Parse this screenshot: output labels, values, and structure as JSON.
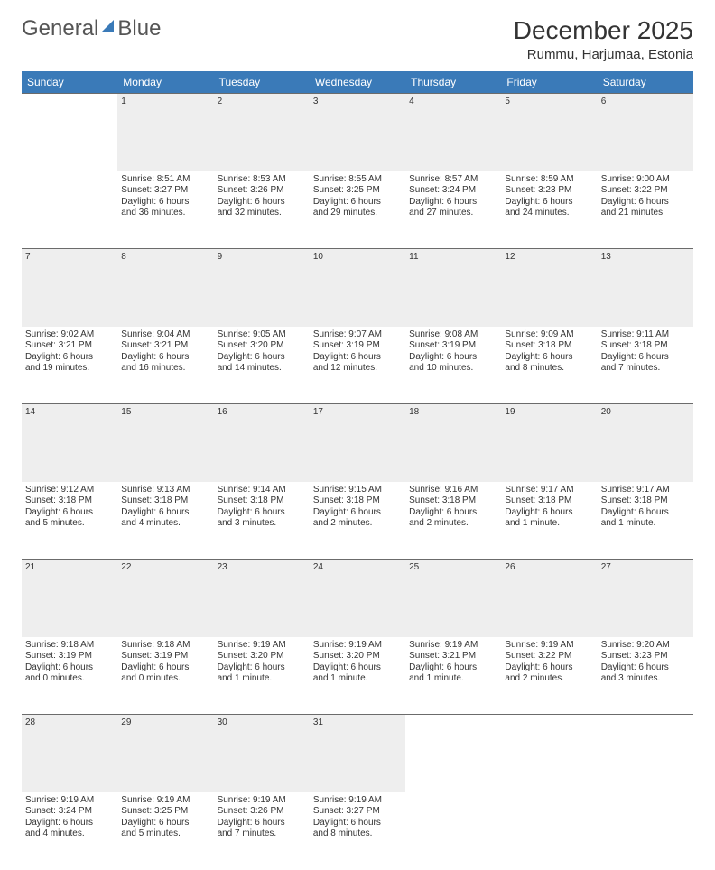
{
  "logo": {
    "part1": "General",
    "part2": "Blue"
  },
  "title": "December 2025",
  "location": "Rummu, Harjumaa, Estonia",
  "colors": {
    "header_bg": "#3a7ab8",
    "header_text": "#ffffff",
    "daynum_bg": "#eeeeee",
    "daynum_text": "#6b6b6b",
    "border": "#6b6b6b",
    "body_text": "#333333"
  },
  "weekdays": [
    "Sunday",
    "Monday",
    "Tuesday",
    "Wednesday",
    "Thursday",
    "Friday",
    "Saturday"
  ],
  "weeks": [
    {
      "nums": [
        "",
        "1",
        "2",
        "3",
        "4",
        "5",
        "6"
      ],
      "cells": [
        null,
        {
          "sunrise": "Sunrise: 8:51 AM",
          "sunset": "Sunset: 3:27 PM",
          "day1": "Daylight: 6 hours",
          "day2": "and 36 minutes."
        },
        {
          "sunrise": "Sunrise: 8:53 AM",
          "sunset": "Sunset: 3:26 PM",
          "day1": "Daylight: 6 hours",
          "day2": "and 32 minutes."
        },
        {
          "sunrise": "Sunrise: 8:55 AM",
          "sunset": "Sunset: 3:25 PM",
          "day1": "Daylight: 6 hours",
          "day2": "and 29 minutes."
        },
        {
          "sunrise": "Sunrise: 8:57 AM",
          "sunset": "Sunset: 3:24 PM",
          "day1": "Daylight: 6 hours",
          "day2": "and 27 minutes."
        },
        {
          "sunrise": "Sunrise: 8:59 AM",
          "sunset": "Sunset: 3:23 PM",
          "day1": "Daylight: 6 hours",
          "day2": "and 24 minutes."
        },
        {
          "sunrise": "Sunrise: 9:00 AM",
          "sunset": "Sunset: 3:22 PM",
          "day1": "Daylight: 6 hours",
          "day2": "and 21 minutes."
        }
      ]
    },
    {
      "nums": [
        "7",
        "8",
        "9",
        "10",
        "11",
        "12",
        "13"
      ],
      "cells": [
        {
          "sunrise": "Sunrise: 9:02 AM",
          "sunset": "Sunset: 3:21 PM",
          "day1": "Daylight: 6 hours",
          "day2": "and 19 minutes."
        },
        {
          "sunrise": "Sunrise: 9:04 AM",
          "sunset": "Sunset: 3:21 PM",
          "day1": "Daylight: 6 hours",
          "day2": "and 16 minutes."
        },
        {
          "sunrise": "Sunrise: 9:05 AM",
          "sunset": "Sunset: 3:20 PM",
          "day1": "Daylight: 6 hours",
          "day2": "and 14 minutes."
        },
        {
          "sunrise": "Sunrise: 9:07 AM",
          "sunset": "Sunset: 3:19 PM",
          "day1": "Daylight: 6 hours",
          "day2": "and 12 minutes."
        },
        {
          "sunrise": "Sunrise: 9:08 AM",
          "sunset": "Sunset: 3:19 PM",
          "day1": "Daylight: 6 hours",
          "day2": "and 10 minutes."
        },
        {
          "sunrise": "Sunrise: 9:09 AM",
          "sunset": "Sunset: 3:18 PM",
          "day1": "Daylight: 6 hours",
          "day2": "and 8 minutes."
        },
        {
          "sunrise": "Sunrise: 9:11 AM",
          "sunset": "Sunset: 3:18 PM",
          "day1": "Daylight: 6 hours",
          "day2": "and 7 minutes."
        }
      ]
    },
    {
      "nums": [
        "14",
        "15",
        "16",
        "17",
        "18",
        "19",
        "20"
      ],
      "cells": [
        {
          "sunrise": "Sunrise: 9:12 AM",
          "sunset": "Sunset: 3:18 PM",
          "day1": "Daylight: 6 hours",
          "day2": "and 5 minutes."
        },
        {
          "sunrise": "Sunrise: 9:13 AM",
          "sunset": "Sunset: 3:18 PM",
          "day1": "Daylight: 6 hours",
          "day2": "and 4 minutes."
        },
        {
          "sunrise": "Sunrise: 9:14 AM",
          "sunset": "Sunset: 3:18 PM",
          "day1": "Daylight: 6 hours",
          "day2": "and 3 minutes."
        },
        {
          "sunrise": "Sunrise: 9:15 AM",
          "sunset": "Sunset: 3:18 PM",
          "day1": "Daylight: 6 hours",
          "day2": "and 2 minutes."
        },
        {
          "sunrise": "Sunrise: 9:16 AM",
          "sunset": "Sunset: 3:18 PM",
          "day1": "Daylight: 6 hours",
          "day2": "and 2 minutes."
        },
        {
          "sunrise": "Sunrise: 9:17 AM",
          "sunset": "Sunset: 3:18 PM",
          "day1": "Daylight: 6 hours",
          "day2": "and 1 minute."
        },
        {
          "sunrise": "Sunrise: 9:17 AM",
          "sunset": "Sunset: 3:18 PM",
          "day1": "Daylight: 6 hours",
          "day2": "and 1 minute."
        }
      ]
    },
    {
      "nums": [
        "21",
        "22",
        "23",
        "24",
        "25",
        "26",
        "27"
      ],
      "cells": [
        {
          "sunrise": "Sunrise: 9:18 AM",
          "sunset": "Sunset: 3:19 PM",
          "day1": "Daylight: 6 hours",
          "day2": "and 0 minutes."
        },
        {
          "sunrise": "Sunrise: 9:18 AM",
          "sunset": "Sunset: 3:19 PM",
          "day1": "Daylight: 6 hours",
          "day2": "and 0 minutes."
        },
        {
          "sunrise": "Sunrise: 9:19 AM",
          "sunset": "Sunset: 3:20 PM",
          "day1": "Daylight: 6 hours",
          "day2": "and 1 minute."
        },
        {
          "sunrise": "Sunrise: 9:19 AM",
          "sunset": "Sunset: 3:20 PM",
          "day1": "Daylight: 6 hours",
          "day2": "and 1 minute."
        },
        {
          "sunrise": "Sunrise: 9:19 AM",
          "sunset": "Sunset: 3:21 PM",
          "day1": "Daylight: 6 hours",
          "day2": "and 1 minute."
        },
        {
          "sunrise": "Sunrise: 9:19 AM",
          "sunset": "Sunset: 3:22 PM",
          "day1": "Daylight: 6 hours",
          "day2": "and 2 minutes."
        },
        {
          "sunrise": "Sunrise: 9:20 AM",
          "sunset": "Sunset: 3:23 PM",
          "day1": "Daylight: 6 hours",
          "day2": "and 3 minutes."
        }
      ]
    },
    {
      "nums": [
        "28",
        "29",
        "30",
        "31",
        "",
        "",
        ""
      ],
      "cells": [
        {
          "sunrise": "Sunrise: 9:19 AM",
          "sunset": "Sunset: 3:24 PM",
          "day1": "Daylight: 6 hours",
          "day2": "and 4 minutes."
        },
        {
          "sunrise": "Sunrise: 9:19 AM",
          "sunset": "Sunset: 3:25 PM",
          "day1": "Daylight: 6 hours",
          "day2": "and 5 minutes."
        },
        {
          "sunrise": "Sunrise: 9:19 AM",
          "sunset": "Sunset: 3:26 PM",
          "day1": "Daylight: 6 hours",
          "day2": "and 7 minutes."
        },
        {
          "sunrise": "Sunrise: 9:19 AM",
          "sunset": "Sunset: 3:27 PM",
          "day1": "Daylight: 6 hours",
          "day2": "and 8 minutes."
        },
        null,
        null,
        null
      ]
    }
  ]
}
